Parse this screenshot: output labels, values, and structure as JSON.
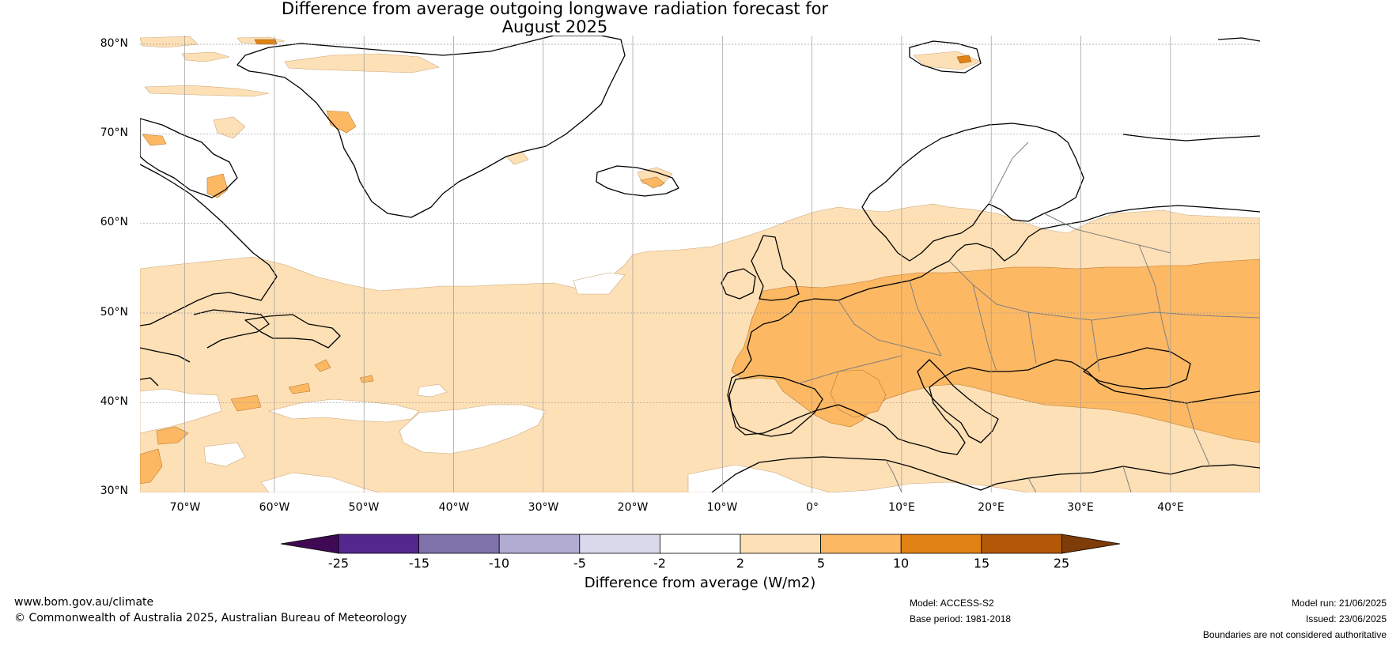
{
  "title_line1": "Difference from average outgoing longwave radiation forecast for",
  "title_line2": "August 2025",
  "map": {
    "lat_labels": [
      "80°N",
      "70°N",
      "60°N",
      "50°N",
      "40°N",
      "30°N"
    ],
    "lon_labels": [
      "70°W",
      "60°W",
      "50°W",
      "40°W",
      "30°W",
      "20°W",
      "10°W",
      "0°",
      "10°E",
      "20°E",
      "30°E",
      "40°E"
    ],
    "lon_range": [
      -75,
      50
    ],
    "lat_range": [
      30,
      81
    ],
    "projection": "plate carree",
    "gridlines": true
  },
  "colorbar": {
    "label": "Difference from average (W/m2)",
    "ticks": [
      "-25",
      "-15",
      "-10",
      "-5",
      "-2",
      "2",
      "5",
      "10",
      "15",
      "25"
    ],
    "bins": [
      {
        "range": "< -25",
        "color": "#3f0a53"
      },
      {
        "range": "-25 to -15",
        "color": "#54278f"
      },
      {
        "range": "-15 to -10",
        "color": "#8073ac"
      },
      {
        "range": "-10 to -5",
        "color": "#b2abd2"
      },
      {
        "range": "-5 to -2",
        "color": "#d8daeb"
      },
      {
        "range": "-2 to 2",
        "color": "#ffffff"
      },
      {
        "range": "2 to 5",
        "color": "#fee0b6"
      },
      {
        "range": "5 to 10",
        "color": "#fdb863"
      },
      {
        "range": "10 to 15",
        "color": "#e08214"
      },
      {
        "range": "15 to 25",
        "color": "#b35806"
      },
      {
        "range": "> 25",
        "color": "#7f3b08"
      }
    ]
  },
  "footer": {
    "website": "www.bom.gov.au/climate",
    "copyright": "© Commonwealth of Australia 2025, Australian Bureau of Meteorology",
    "model": "Model: ACCESS-S2",
    "base_period": "Base period: 1981-2018",
    "model_run": "Model run: 21/06/2025",
    "issued": "Issued: 23/06/2025",
    "disclaimer": "Boundaries are not considered authoritative"
  }
}
